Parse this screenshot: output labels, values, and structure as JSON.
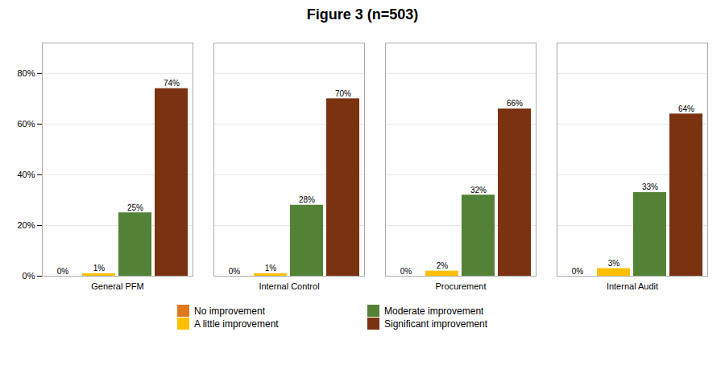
{
  "chart_data": {
    "type": "bar",
    "title": "Figure 3 (n=503)",
    "categories": [
      "General PFM",
      "Internal Control",
      "Procurement",
      "Internal Audit"
    ],
    "series": [
      {
        "name": "No improvement",
        "color": "#E07820",
        "values": [
          0,
          0,
          0,
          0
        ],
        "value_labels": [
          "0%",
          "0%",
          "0%",
          "0%"
        ]
      },
      {
        "name": "A little improvement",
        "color": "#FFC000",
        "values": [
          1,
          1,
          2,
          3
        ],
        "value_labels": [
          "1%",
          "1%",
          "2%",
          "3%"
        ]
      },
      {
        "name": "Moderate improvement",
        "color": "#538135",
        "values": [
          25,
          28,
          32,
          33
        ],
        "value_labels": [
          "25%",
          "28%",
          "32%",
          "33%"
        ]
      },
      {
        "name": "Significant improvement",
        "color": "#7B3210",
        "values": [
          74,
          70,
          66,
          64
        ],
        "value_labels": [
          "74%",
          "70%",
          "66%",
          "64%"
        ]
      }
    ],
    "ylim": [
      0,
      92
    ],
    "yticks": [
      {
        "value": 0,
        "label": "0%"
      },
      {
        "value": 20,
        "label": "20%"
      },
      {
        "value": 40,
        "label": "40%"
      },
      {
        "value": 60,
        "label": "60%"
      },
      {
        "value": 80,
        "label": "80%"
      }
    ],
    "grid": true,
    "data_labels": true,
    "legend": "bottom"
  }
}
